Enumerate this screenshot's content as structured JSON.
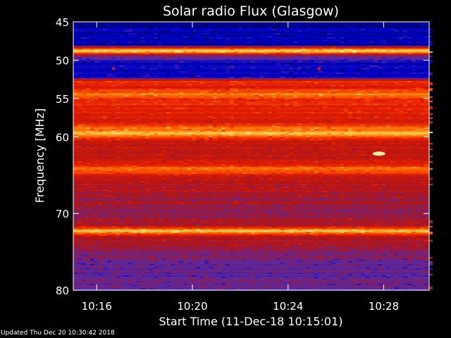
{
  "chart_data": {
    "type": "heatmap",
    "title": "Solar radio Flux (Glasgow)",
    "xlabel": "Start Time (11-Dec-18 10:15:01)",
    "ylabel": "Frequency [MHz]",
    "x_unit": "minutes past 10:00",
    "xlim": [
      15.02,
      29.9
    ],
    "ylim": [
      45,
      80
    ],
    "y_inverted": true,
    "x_ticks": [
      {
        "value": 16,
        "label": "10:16"
      },
      {
        "value": 20,
        "label": "10:20"
      },
      {
        "value": 24,
        "label": "10:24"
      },
      {
        "value": 28,
        "label": "10:28"
      }
    ],
    "y_ticks": [
      {
        "value": 45,
        "label": "45"
      },
      {
        "value": 50,
        "label": "50"
      },
      {
        "value": 55,
        "label": "55"
      },
      {
        "value": 60,
        "label": "60"
      },
      {
        "value": 70,
        "label": "70"
      },
      {
        "value": 80,
        "label": "80"
      }
    ],
    "colormap": [
      "#000050",
      "#0000c8",
      "#5a28a0",
      "#b41414",
      "#e61e00",
      "#ff6400",
      "#ffcc44",
      "#ffffcc"
    ],
    "intensity_profile": [
      {
        "freq": 45.0,
        "level": 0.05
      },
      {
        "freq": 46.0,
        "level": 0.12
      },
      {
        "freq": 48.0,
        "level": 0.1
      },
      {
        "freq": 48.8,
        "level": 0.95
      },
      {
        "freq": 49.3,
        "level": 0.4
      },
      {
        "freq": 50.2,
        "level": 0.15
      },
      {
        "freq": 51.2,
        "level": 0.12
      },
      {
        "freq": 52.3,
        "level": 0.2
      },
      {
        "freq": 52.8,
        "level": 0.65
      },
      {
        "freq": 53.5,
        "level": 0.55
      },
      {
        "freq": 54.4,
        "level": 0.75
      },
      {
        "freq": 55.0,
        "level": 0.6
      },
      {
        "freq": 56.5,
        "level": 0.58
      },
      {
        "freq": 58.0,
        "level": 0.52
      },
      {
        "freq": 59.5,
        "level": 0.85
      },
      {
        "freq": 60.5,
        "level": 0.48
      },
      {
        "freq": 63.0,
        "level": 0.47
      },
      {
        "freq": 64.2,
        "level": 0.72
      },
      {
        "freq": 65.5,
        "level": 0.45
      },
      {
        "freq": 68.0,
        "level": 0.4
      },
      {
        "freq": 70.0,
        "level": 0.38
      },
      {
        "freq": 71.5,
        "level": 0.42
      },
      {
        "freq": 72.3,
        "level": 0.88
      },
      {
        "freq": 73.0,
        "level": 0.45
      },
      {
        "freq": 75.0,
        "level": 0.35
      },
      {
        "freq": 77.0,
        "level": 0.3
      },
      {
        "freq": 80.0,
        "level": 0.28
      }
    ],
    "bursts": [
      {
        "time": 27.8,
        "freq": 62.2,
        "level": 0.95
      },
      {
        "time": 16.7,
        "freq": 51.1,
        "level": 0.55
      },
      {
        "time": 25.3,
        "freq": 51.1,
        "level": 0.55
      }
    ]
  },
  "footer": {
    "updated": "Updated Thu Dec 20 10:30:42 2018"
  }
}
